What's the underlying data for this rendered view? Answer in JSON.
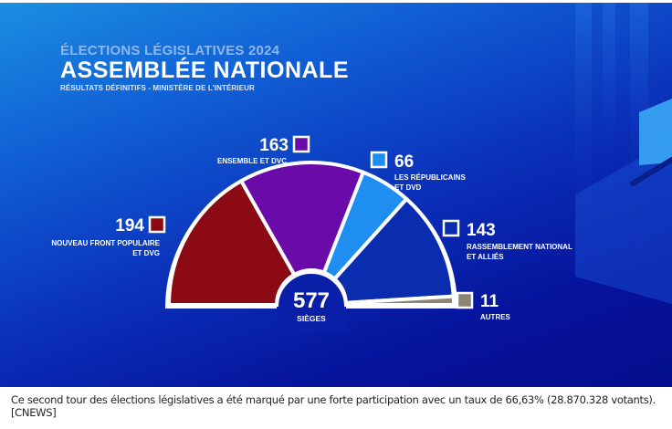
{
  "header": {
    "supertitle": "ÉLECTIONS LÉGISLATIVES 2024",
    "title": "ASSEMBLÉE NATIONALE",
    "subtitle": "RÉSULTATS DÉFINITIFS - MINISTÈRE DE L'INTÉRIEUR"
  },
  "chart_data": {
    "type": "pie",
    "subtype": "hemicycle",
    "title": "ASSEMBLÉE NATIONALE",
    "total": {
      "value": "577",
      "label": "SIÈGES"
    },
    "series": [
      {
        "name": "NOUVEAU FRONT POPULAIRE ET DVG",
        "lines": [
          "NOUVEAU FRONT POPULAIRE",
          "ET DVG"
        ],
        "value": 194,
        "color": "#8b0a14",
        "label_side": "left"
      },
      {
        "name": "ENSEMBLE ET DVC",
        "lines": [
          "ENSEMBLE ET DVC"
        ],
        "value": 163,
        "color": "#6a0aa8",
        "label_side": "top-left"
      },
      {
        "name": "LES RÉPUBLICAINS ET DVD",
        "lines": [
          "LES RÉPUBLICAINS",
          "ET DVD"
        ],
        "value": 66,
        "color": "#1e8ef0",
        "label_side": "top-right"
      },
      {
        "name": "RASSEMBLEMENT NATIONAL ET ALLIÉS",
        "lines": [
          "RASSEMBLEMENT NATIONAL",
          "ET ALLIÉS"
        ],
        "value": 143,
        "color": "#0a2db0",
        "label_side": "right"
      },
      {
        "name": "AUTRES",
        "lines": [
          "AUTRES"
        ],
        "value": 11,
        "color": "#8a8672",
        "label_side": "bottom-right"
      }
    ]
  },
  "caption": "Ce second tour des élections législatives a été marqué par une forte participation avec un taux de 66,63% (28.870.328 votants). [CNEWS]"
}
